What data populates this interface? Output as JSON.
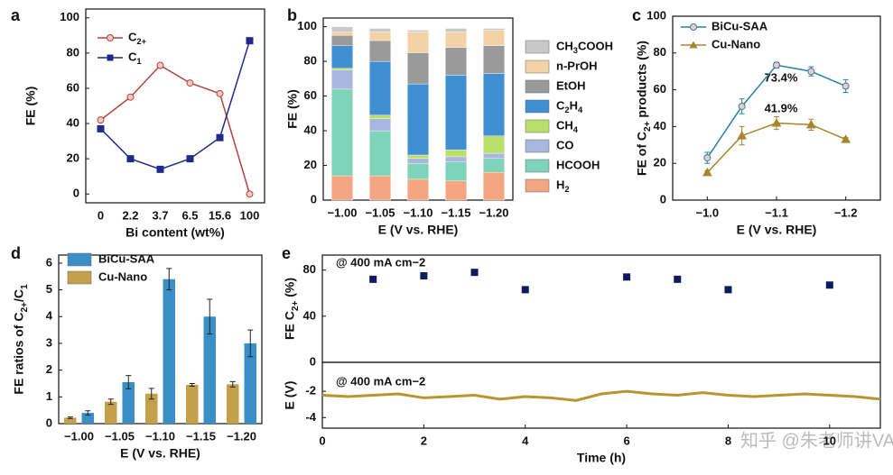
{
  "watermark": "知乎 @朱老师讲VASP",
  "chart_data": [
    {
      "panel": "a",
      "type": "line",
      "categories": [
        "0",
        "2.2",
        "3.7",
        "6.5",
        "15.6",
        "100"
      ],
      "xlabel": "Bi content (wt%)",
      "ylabel": "FE (%)",
      "ylim": [
        -5,
        105
      ],
      "yticks": [
        0,
        20,
        40,
        60,
        80,
        100
      ],
      "series": [
        {
          "name": "C2+",
          "color": "#b5403c",
          "marker": "circle",
          "values": [
            42,
            55,
            73,
            63,
            57,
            0
          ]
        },
        {
          "name": "C1",
          "color": "#1f2a8a",
          "marker": "square",
          "values": [
            37,
            20,
            14,
            20,
            32,
            87
          ]
        }
      ]
    },
    {
      "panel": "b",
      "type": "bar",
      "stacked": true,
      "legend_order": "reverse",
      "categories": [
        "−1.00",
        "−1.05",
        "−1.10",
        "−1.15",
        "−1.20"
      ],
      "xlabel": "E (V vs. RHE)",
      "ylabel": "FE (%)",
      "ylim": [
        0,
        105
      ],
      "yticks": [
        0,
        20,
        40,
        60,
        80,
        100
      ],
      "series": [
        {
          "name": "H2",
          "color": "#f4a582",
          "values": [
            14,
            14,
            12,
            11,
            16
          ]
        },
        {
          "name": "HCOOH",
          "color": "#7fd3b8",
          "values": [
            50,
            26,
            9,
            11,
            8
          ]
        },
        {
          "name": "CO",
          "color": "#a9b6dd",
          "values": [
            11,
            7,
            3,
            3,
            3
          ]
        },
        {
          "name": "CH4",
          "color": "#b9df6a",
          "values": [
            1,
            2,
            2,
            4,
            10
          ]
        },
        {
          "name": "C2H4",
          "color": "#3f8fd2",
          "values": [
            13,
            31,
            41,
            43,
            36
          ]
        },
        {
          "name": "EtOH",
          "color": "#9a9a9a",
          "values": [
            6,
            12,
            18,
            16,
            16
          ]
        },
        {
          "name": "n-PrOH",
          "color": "#f2d3a7",
          "values": [
            2,
            5,
            12,
            9,
            9
          ]
        },
        {
          "name": "CH3COOH",
          "color": "#c8c8c8",
          "values": [
            3,
            2,
            1,
            2,
            1
          ]
        }
      ]
    },
    {
      "panel": "c",
      "type": "line",
      "x": [
        -1.0,
        -1.05,
        -1.1,
        -1.15,
        -1.2
      ],
      "xlim": [
        -0.95,
        -1.25
      ],
      "xticks": [
        {
          "value": -1.0,
          "label": "−1.0"
        },
        {
          "value": -1.1,
          "label": "−1.1"
        },
        {
          "value": -1.2,
          "label": "−1.2"
        }
      ],
      "xlabel": "E (V vs. RHE)",
      "ylabel": "FE of C2+ products (%)",
      "ylim": [
        0,
        100
      ],
      "yticks": [
        0,
        20,
        40,
        60,
        80,
        100
      ],
      "annotations": [
        "73.4%",
        "41.9%"
      ],
      "series": [
        {
          "name": "BiCu-SAA",
          "color": "#2a7fa8",
          "marker": "circle",
          "values": [
            23,
            51,
            73.4,
            70,
            62
          ],
          "errors": [
            3,
            4,
            1.5,
            2.5,
            3.5
          ]
        },
        {
          "name": "Cu-Nano",
          "color": "#a8842a",
          "marker": "triangle",
          "values": [
            15,
            35,
            41.9,
            41,
            33
          ],
          "errors": [
            1,
            5,
            3.5,
            3,
            1
          ]
        }
      ]
    },
    {
      "panel": "d",
      "type": "bar",
      "categories": [
        "−1.00",
        "−1.05",
        "−1.10",
        "−1.15",
        "−1.20"
      ],
      "xlabel": "E (V vs. RHE)",
      "ylabel": "FE ratios of C2+/C1",
      "ylim": [
        0,
        6.3
      ],
      "yticks": [
        0,
        1,
        2,
        3,
        4,
        5,
        6
      ],
      "series": [
        {
          "name": "BiCu-SAA",
          "color": "#3a8fc7",
          "values": [
            0.4,
            1.55,
            5.4,
            4.0,
            3.0
          ],
          "errors": [
            0.08,
            0.25,
            0.4,
            0.65,
            0.5
          ]
        },
        {
          "name": "Cu-Nano",
          "color": "#c4a04a",
          "values": [
            0.22,
            0.82,
            1.12,
            1.45,
            1.47
          ],
          "errors": [
            0.03,
            0.1,
            0.2,
            0.05,
            0.1
          ]
        }
      ]
    },
    {
      "panel": "e",
      "type": "scatter",
      "x": [
        1,
        2,
        3,
        4,
        6,
        7,
        8,
        10
      ],
      "values": [
        72,
        75,
        78,
        63,
        74,
        72,
        63,
        67
      ],
      "color": "#0d1a5e",
      "xlim": [
        0,
        11
      ],
      "ylim": [
        0,
        93
      ],
      "yticks": [
        0,
        40,
        80
      ],
      "ylabel": "FE C2+ (%)",
      "annotations": [
        "@ 400 mA cm−2"
      ]
    },
    {
      "type": "line",
      "x": [
        0,
        0.5,
        1,
        1.5,
        2,
        2.5,
        3,
        3.5,
        4,
        4.5,
        5,
        5.5,
        6,
        6.5,
        7,
        7.5,
        8,
        8.5,
        9,
        9.5,
        10,
        10.5,
        11
      ],
      "xlim": [
        0,
        11
      ],
      "xticks": [
        0,
        2,
        4,
        6,
        8,
        10
      ],
      "xlabel": "Time (h)",
      "ylabel": "E (V)",
      "ylim": [
        -4.8,
        0.2
      ],
      "yticks": [
        -4,
        -2
      ],
      "annotations": [
        "@ 400 mA cm−2"
      ],
      "series": [
        {
          "color": "#b8952e",
          "values": [
            -2.3,
            -2.4,
            -2.3,
            -2.2,
            -2.5,
            -2.4,
            -2.3,
            -2.6,
            -2.4,
            -2.5,
            -2.7,
            -2.2,
            -2.0,
            -2.2,
            -2.3,
            -2.1,
            -2.3,
            -2.4,
            -2.3,
            -2.2,
            -2.3,
            -2.4,
            -2.6
          ]
        }
      ]
    }
  ]
}
